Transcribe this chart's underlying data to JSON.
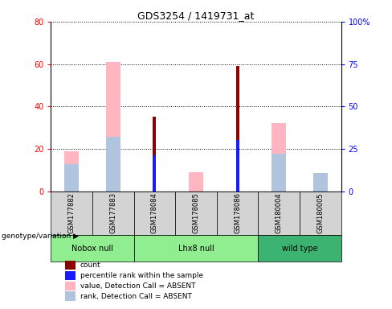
{
  "title": "GDS3254 / 1419731_at",
  "samples": [
    "GSM177882",
    "GSM177883",
    "GSM178084",
    "GSM178085",
    "GSM178086",
    "GSM180004",
    "GSM180005"
  ],
  "count": [
    null,
    null,
    35,
    null,
    59,
    null,
    null
  ],
  "percentile_rank": [
    null,
    null,
    21,
    null,
    30,
    null,
    null
  ],
  "value_absent": [
    19,
    61,
    null,
    9,
    null,
    32,
    8
  ],
  "rank_absent": [
    16,
    32,
    null,
    null,
    null,
    22,
    11
  ],
  "left_ylim": [
    0,
    80
  ],
  "right_ylim": [
    0,
    100
  ],
  "left_yticks": [
    0,
    20,
    40,
    60,
    80
  ],
  "right_yticks": [
    0,
    25,
    50,
    75,
    100
  ],
  "left_yticklabels": [
    "0",
    "20",
    "40",
    "60",
    "80"
  ],
  "right_yticklabels": [
    "0",
    "25",
    "50",
    "75",
    "100%"
  ],
  "count_color": "#8b0000",
  "percentile_color": "#1a1aff",
  "value_absent_color": "#ffb6c1",
  "rank_absent_color": "#b0c4de",
  "bg_plot": "#ffffff",
  "bg_label": "#d3d3d3",
  "group_configs": [
    {
      "label": "Nobox null",
      "start": 0,
      "end": 1,
      "color": "#90ee90"
    },
    {
      "label": "Lhx8 null",
      "start": 2,
      "end": 4,
      "color": "#90ee90"
    },
    {
      "label": "wild type",
      "start": 5,
      "end": 6,
      "color": "#3cb371"
    }
  ],
  "wide_bar_width": 0.35,
  "narrow_bar_width": 0.08
}
